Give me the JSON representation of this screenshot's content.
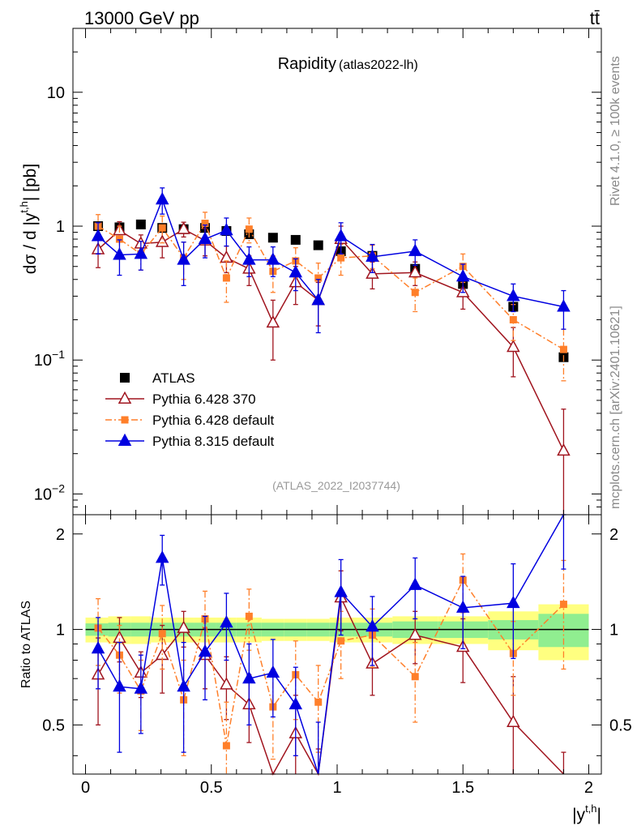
{
  "header": {
    "energy": "13000 GeV pp",
    "process": "tt̄",
    "side_rivet": "Rivet 4.1.0, ≥ 100k events",
    "side_mcplots": "mcplots.cern.ch [arXiv:2401.10621]"
  },
  "chart_data": {
    "type": "scatter",
    "title": "Rapidity",
    "subtitle": "(atlas2022-lh)",
    "analysis_label": "(ATLAS_2022_I2037744)",
    "xlabel": "|y",
    "xlabel_sup": "t,h",
    "xlabel_close": "|",
    "ylabel": "dσ / d |y",
    "ylabel_sup": "t,h",
    "ylabel_close": "| [pb]",
    "ratio_ylabel": "Ratio to ATLAS",
    "xlim": [
      -0.05,
      2.05
    ],
    "ylim": [
      0.007,
      30
    ],
    "ratio_ylim": [
      0.35,
      2.3
    ],
    "yscale": "log",
    "x_ticks": [
      "0",
      "0.5",
      "1",
      "1.5",
      "2"
    ],
    "y_ticks": [
      {
        "base": "10",
        "exp": "−2"
      },
      {
        "base": "10",
        "exp": "−1"
      },
      {
        "base": "1",
        "exp": ""
      },
      {
        "base": "10",
        "exp": ""
      }
    ],
    "ratio_ticks": [
      "0.5",
      "1",
      "2"
    ],
    "x": [
      0.05,
      0.135,
      0.22,
      0.305,
      0.39,
      0.475,
      0.56,
      0.65,
      0.745,
      0.835,
      0.925,
      1.015,
      1.14,
      1.31,
      1.5,
      1.7,
      1.9
    ],
    "bin_edges": [
      0.0,
      0.09,
      0.18,
      0.26,
      0.35,
      0.43,
      0.52,
      0.6,
      0.7,
      0.79,
      0.88,
      0.97,
      1.06,
      1.22,
      1.4,
      1.6,
      1.8,
      2.0
    ],
    "band_inner": [
      0.045,
      0.05,
      0.05,
      0.05,
      0.05,
      0.05,
      0.05,
      0.05,
      0.05,
      0.05,
      0.05,
      0.05,
      0.05,
      0.06,
      0.06,
      0.07,
      0.12
    ],
    "band_outer": [
      0.09,
      0.1,
      0.1,
      0.09,
      0.09,
      0.09,
      0.09,
      0.09,
      0.08,
      0.08,
      0.08,
      0.09,
      0.09,
      0.1,
      0.1,
      0.14,
      0.2
    ],
    "series": [
      {
        "name": "ATLAS",
        "marker": "square",
        "color": "#000000",
        "line": "none",
        "values": [
          1.0,
          0.98,
          1.03,
          0.97,
          0.95,
          0.97,
          0.92,
          0.87,
          0.82,
          0.79,
          0.72,
          0.65,
          0.6,
          0.48,
          0.37,
          0.25,
          0.105
        ]
      },
      {
        "name": "Pythia 6.428 370",
        "marker": "triangle-open",
        "color": "#a0141e",
        "line": "solid",
        "values": [
          0.67,
          0.93,
          0.74,
          0.76,
          0.95,
          0.78,
          0.58,
          0.48,
          0.19,
          0.38,
          0.28,
          0.8,
          0.44,
          0.45,
          0.32,
          0.125,
          0.021
        ],
        "errors": [
          0.18,
          0.15,
          0.12,
          0.18,
          0.12,
          0.18,
          0.13,
          0.12,
          0.09,
          0.12,
          0.1,
          0.2,
          0.1,
          0.09,
          0.08,
          0.05,
          0.022
        ],
        "ratio": [
          0.72,
          0.94,
          0.73,
          0.83,
          1.01,
          0.83,
          0.67,
          0.58,
          0.24,
          0.47,
          0.29,
          1.26,
          0.78,
          0.96,
          0.88,
          0.51,
          0.2
        ],
        "ratio_errors": [
          0.22,
          0.15,
          0.12,
          0.2,
          0.13,
          0.18,
          0.15,
          0.14,
          0.11,
          0.15,
          0.13,
          0.27,
          0.16,
          0.18,
          0.2,
          0.2,
          0.21
        ]
      },
      {
        "name": "Pythia 6.428 default",
        "marker": "square-small",
        "color": "#ff7f2a",
        "line": "dashdot",
        "values": [
          1.0,
          0.8,
          0.62,
          0.97,
          0.58,
          1.05,
          0.41,
          0.95,
          0.46,
          0.55,
          0.41,
          0.58,
          0.6,
          0.32,
          0.5,
          0.2,
          0.12
        ],
        "errors": [
          0.22,
          0.2,
          0.15,
          0.22,
          0.18,
          0.22,
          0.14,
          0.2,
          0.14,
          0.14,
          0.12,
          0.15,
          0.12,
          0.09,
          0.12,
          0.06,
          0.05
        ],
        "ratio": [
          1.01,
          0.83,
          0.64,
          0.97,
          0.6,
          1.08,
          0.43,
          1.1,
          0.57,
          0.72,
          0.59,
          0.92,
          0.96,
          0.71,
          1.43,
          0.84,
          1.2
        ],
        "ratio_errors": [
          0.24,
          0.2,
          0.16,
          0.22,
          0.2,
          0.24,
          0.16,
          0.24,
          0.18,
          0.2,
          0.18,
          0.22,
          0.2,
          0.2,
          0.3,
          0.22,
          0.45
        ]
      },
      {
        "name": "Pythia 8.315 default",
        "marker": "triangle",
        "color": "#0000e0",
        "line": "solid",
        "values": [
          0.84,
          0.61,
          0.62,
          1.58,
          0.56,
          0.8,
          0.93,
          0.56,
          0.56,
          0.45,
          0.28,
          0.84,
          0.59,
          0.65,
          0.42,
          0.3,
          0.25
        ],
        "errors": [
          0.22,
          0.18,
          0.15,
          0.35,
          0.2,
          0.22,
          0.22,
          0.14,
          0.14,
          0.12,
          0.12,
          0.22,
          0.14,
          0.14,
          0.1,
          0.07,
          0.08
        ],
        "ratio": [
          0.87,
          0.66,
          0.65,
          1.68,
          0.66,
          0.85,
          1.05,
          0.7,
          0.73,
          0.58,
          0.33,
          1.31,
          1.02,
          1.38,
          1.17,
          1.21,
          2.35
        ],
        "ratio_errors": [
          0.22,
          0.25,
          0.18,
          0.3,
          0.25,
          0.25,
          0.25,
          0.2,
          0.2,
          0.18,
          0.18,
          0.35,
          0.25,
          0.3,
          0.3,
          0.4,
          0.8
        ]
      }
    ]
  }
}
